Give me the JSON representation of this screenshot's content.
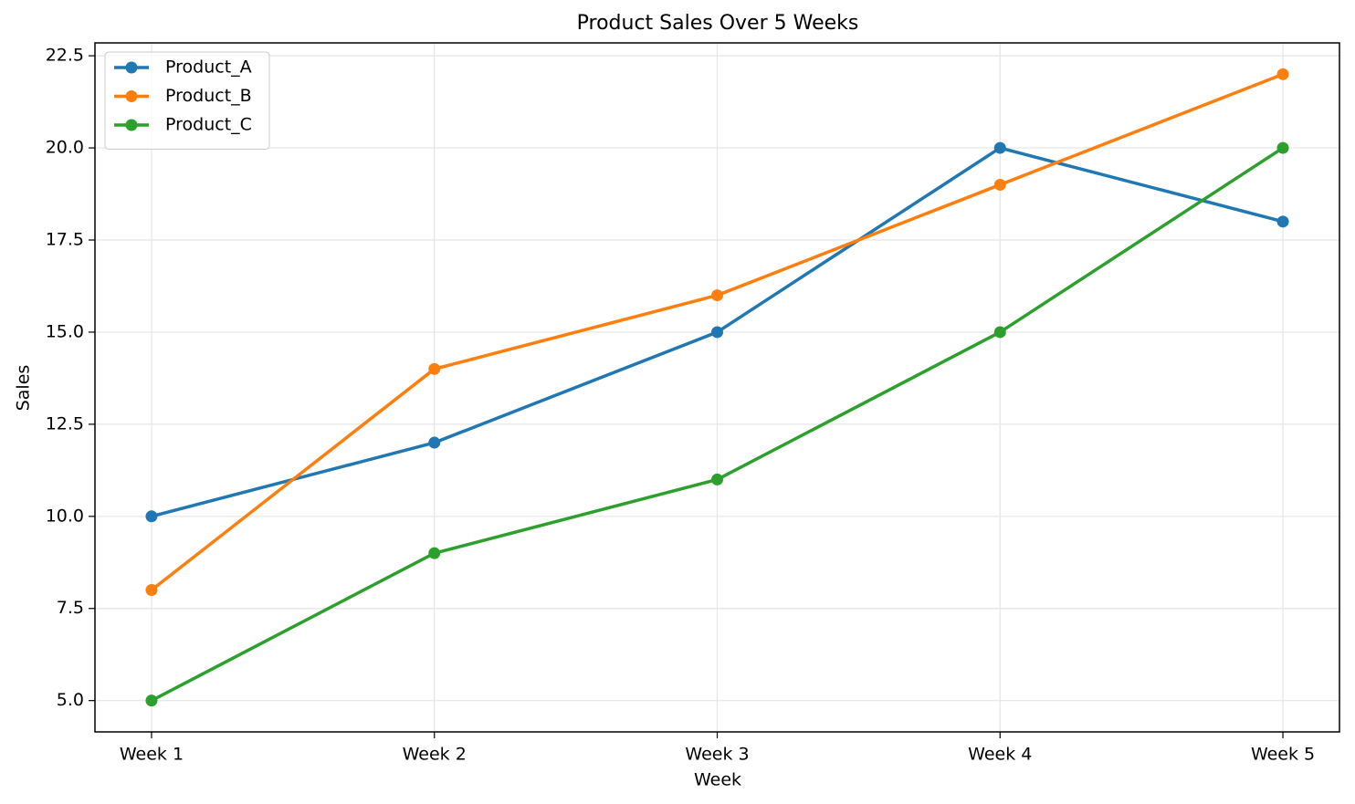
{
  "chart_data": {
    "type": "line",
    "title": "Product Sales Over 5 Weeks",
    "x_label": "Week",
    "y_label": "Sales",
    "categories": [
      "Week 1",
      "Week 2",
      "Week 3",
      "Week 4",
      "Week 5"
    ],
    "series": [
      {
        "name": "Product_A",
        "color": "#1f77b4",
        "values": [
          10,
          12,
          15,
          20,
          18
        ]
      },
      {
        "name": "Product_B",
        "color": "#ff7f0e",
        "values": [
          8,
          14,
          16,
          19,
          22
        ]
      },
      {
        "name": "Product_C",
        "color": "#2ca02c",
        "values": [
          5,
          9,
          11,
          15,
          20
        ]
      }
    ],
    "ylim": [
      4.15,
      22.85
    ],
    "yticks": [
      {
        "value": 5,
        "label": "5.0"
      },
      7.5,
      {
        "value": 10,
        "label": "10.0"
      },
      12.5,
      {
        "value": 15,
        "label": "15.0"
      },
      17.5,
      {
        "value": 20,
        "label": "20.0"
      },
      22.5
    ],
    "grid": true,
    "legend": "upper-left"
  }
}
